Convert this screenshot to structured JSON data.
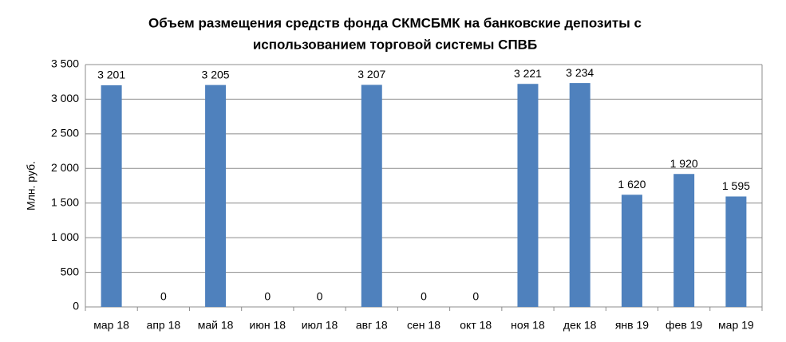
{
  "chart_data": {
    "type": "bar",
    "title": [
      "Объем размещения средств фонда СКМСБМК на банковские депозиты с",
      "использованием торговой системы СПВБ"
    ],
    "y_label": "Млн. руб.",
    "categories": [
      "мар 18",
      "апр 18",
      "май 18",
      "июн 18",
      "июл 18",
      "авг 18",
      "сен 18",
      "окт 18",
      "ноя 18",
      "дек 18",
      "янв 19",
      "фев 19",
      "мар 19"
    ],
    "values": [
      3201,
      0,
      3205,
      0,
      0,
      3207,
      0,
      0,
      3221,
      3234,
      1620,
      1920,
      1595
    ],
    "value_labels": [
      "3 201",
      "0",
      "3 205",
      "0",
      "0",
      "3 207",
      "0",
      "0",
      "3 221",
      "3 234",
      "1 620",
      "1 920",
      "1 595"
    ],
    "color": "#4f81bd",
    "ylim": [
      0,
      3500
    ],
    "yticks": [
      0,
      500,
      {
        "value": 1000,
        "label": "1 000"
      },
      {
        "value": 1500,
        "label": "1 500"
      },
      {
        "value": 2000,
        "label": "2 000"
      },
      {
        "value": 2500,
        "label": "2 500"
      },
      {
        "value": 3000,
        "label": "3 000"
      },
      {
        "value": 3500,
        "label": "3 500"
      }
    ],
    "grid": true
  }
}
